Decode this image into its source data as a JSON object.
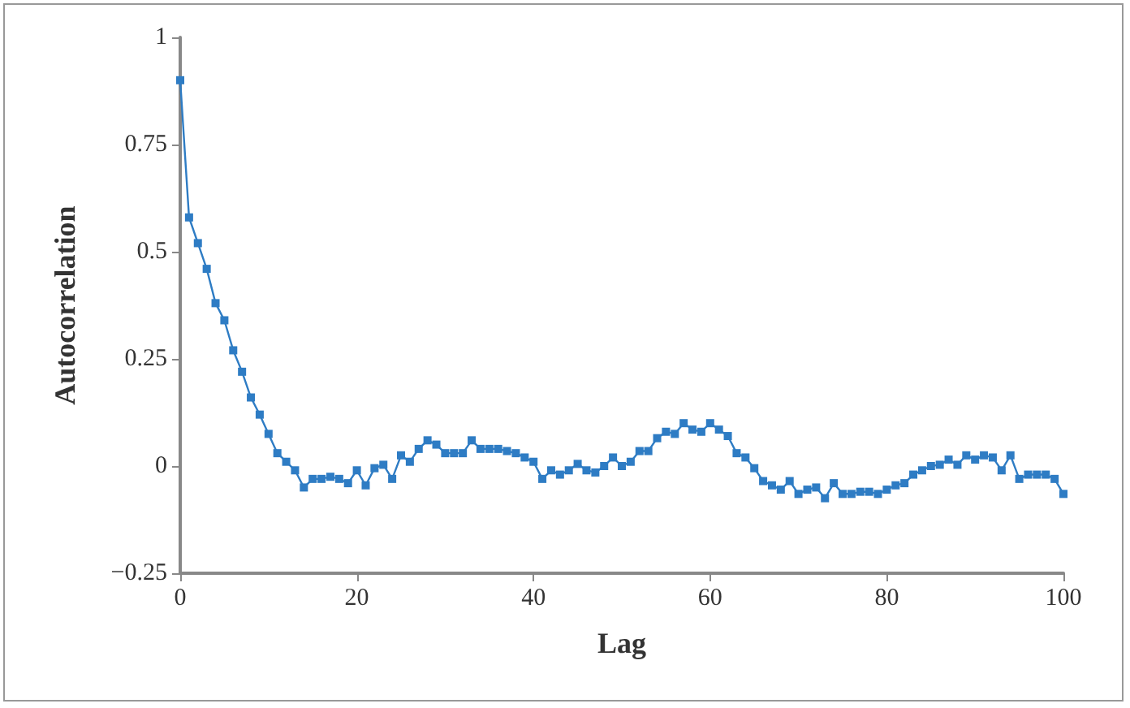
{
  "chart_data": {
    "type": "line",
    "xlabel": "Lag",
    "ylabel": "Autocorrelation",
    "x": [
      0,
      1,
      2,
      3,
      4,
      5,
      6,
      7,
      8,
      9,
      10,
      11,
      12,
      13,
      14,
      15,
      16,
      17,
      18,
      19,
      20,
      21,
      22,
      23,
      24,
      25,
      26,
      27,
      28,
      29,
      30,
      31,
      32,
      33,
      34,
      35,
      36,
      37,
      38,
      39,
      40,
      41,
      42,
      43,
      44,
      45,
      46,
      47,
      48,
      49,
      50,
      51,
      52,
      53,
      54,
      55,
      56,
      57,
      58,
      59,
      60,
      61,
      62,
      63,
      64,
      65,
      66,
      67,
      68,
      69,
      70,
      71,
      72,
      73,
      74,
      75,
      76,
      77,
      78,
      79,
      80,
      81,
      82,
      83,
      84,
      85,
      86,
      87,
      88,
      89,
      90,
      91,
      92,
      93,
      94,
      95,
      96,
      97,
      98,
      99,
      100
    ],
    "series": [
      {
        "color": "#2e7cc4",
        "values": [
          0.9,
          0.58,
          0.52,
          0.46,
          0.38,
          0.34,
          0.27,
          0.22,
          0.16,
          0.12,
          0.075,
          0.03,
          0.01,
          -0.01,
          -0.05,
          -0.03,
          -0.03,
          -0.025,
          -0.03,
          -0.04,
          -0.01,
          -0.045,
          -0.005,
          0.003,
          -0.03,
          0.025,
          0.01,
          0.04,
          0.06,
          0.05,
          0.03,
          0.03,
          0.03,
          0.06,
          0.04,
          0.04,
          0.04,
          0.035,
          0.03,
          0.02,
          0.01,
          -0.03,
          -0.01,
          -0.02,
          -0.01,
          0.005,
          -0.01,
          -0.015,
          0,
          0.02,
          0,
          0.01,
          0.035,
          0.035,
          0.065,
          0.08,
          0.075,
          0.1,
          0.085,
          0.08,
          0.1,
          0.085,
          0.07,
          0.03,
          0.02,
          -0.005,
          -0.035,
          -0.045,
          -0.055,
          -0.035,
          -0.065,
          -0.055,
          -0.05,
          -0.075,
          -0.04,
          -0.065,
          -0.065,
          -0.06,
          -0.06,
          -0.065,
          -0.055,
          -0.045,
          -0.04,
          -0.02,
          -0.01,
          0,
          0.003,
          0.015,
          0.003,
          0.025,
          0.015,
          0.025,
          0.02,
          -0.01,
          0.025,
          -0.03,
          -0.02,
          -0.02,
          -0.02,
          -0.03,
          -0.065
        ]
      }
    ],
    "xlim": [
      0,
      100
    ],
    "xticks": [
      0,
      20,
      40,
      60,
      80,
      100
    ],
    "ylim": [
      -0.25,
      1
    ],
    "yticks": [
      -0.25,
      0,
      0.25,
      0.5,
      0.75,
      1
    ],
    "grid": false,
    "marker": "square",
    "line_style": "solid"
  }
}
